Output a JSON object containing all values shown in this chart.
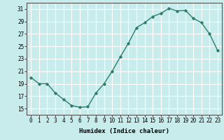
{
  "x": [
    0,
    1,
    2,
    3,
    4,
    5,
    6,
    7,
    8,
    9,
    10,
    11,
    12,
    13,
    14,
    15,
    16,
    17,
    18,
    19,
    20,
    21,
    22,
    23
  ],
  "y": [
    20,
    19,
    19,
    17.5,
    16.5,
    15.5,
    15.2,
    15.3,
    17.5,
    19,
    21,
    23.3,
    25.5,
    28,
    28.8,
    29.8,
    30.3,
    31.1,
    30.7,
    30.8,
    29.5,
    28.8,
    27,
    24.3
  ],
  "line_color": "#2e7d6e",
  "bg_color": "#c8ecec",
  "grid_color": "#ffffff",
  "xlabel": "Humidex (Indice chaleur)",
  "ylim": [
    14,
    32
  ],
  "xlim": [
    -0.5,
    23.5
  ],
  "yticks": [
    15,
    17,
    19,
    21,
    23,
    25,
    27,
    29,
    31
  ],
  "xticks": [
    0,
    1,
    2,
    3,
    4,
    5,
    6,
    7,
    8,
    9,
    10,
    11,
    12,
    13,
    14,
    15,
    16,
    17,
    18,
    19,
    20,
    21,
    22,
    23
  ],
  "marker": "D",
  "marker_size": 1.8,
  "line_width": 1.0,
  "font_size": 5.5,
  "xlabel_fontsize": 6.5
}
